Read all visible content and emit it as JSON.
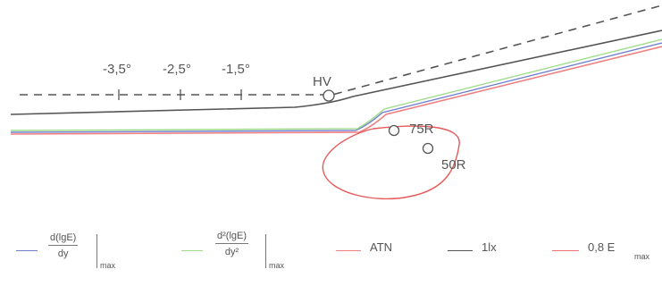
{
  "diagram": {
    "angle_labels": [
      "-3,5°",
      "-2,5°",
      "-1,5°"
    ],
    "hv_label": "HV",
    "points": [
      {
        "label": "75R"
      },
      {
        "label": "50R"
      }
    ]
  },
  "legend": {
    "items": [
      {
        "kind": "fraction",
        "numerator": "d(lgE)",
        "denominator": "dy",
        "subscript": "max",
        "color": "#6f7fd0"
      },
      {
        "kind": "fraction2",
        "numerator": "d²(lgE)",
        "denominator": "dy²",
        "subscript": "max",
        "color": "#9fdc8a"
      },
      {
        "kind": "text",
        "text": "ATN",
        "color": "#f08080"
      },
      {
        "kind": "text",
        "text": "1lx",
        "color": "#555555"
      },
      {
        "kind": "text",
        "text": "0,8 E",
        "subscript": "max",
        "color": "#f07070"
      }
    ]
  },
  "colors": {
    "dashed": "#555555",
    "one_lux": "#555555",
    "atn": "#f08080",
    "green": "#9fdc8a",
    "blue": "#6f7fd0",
    "contour": "#e85a5a"
  }
}
